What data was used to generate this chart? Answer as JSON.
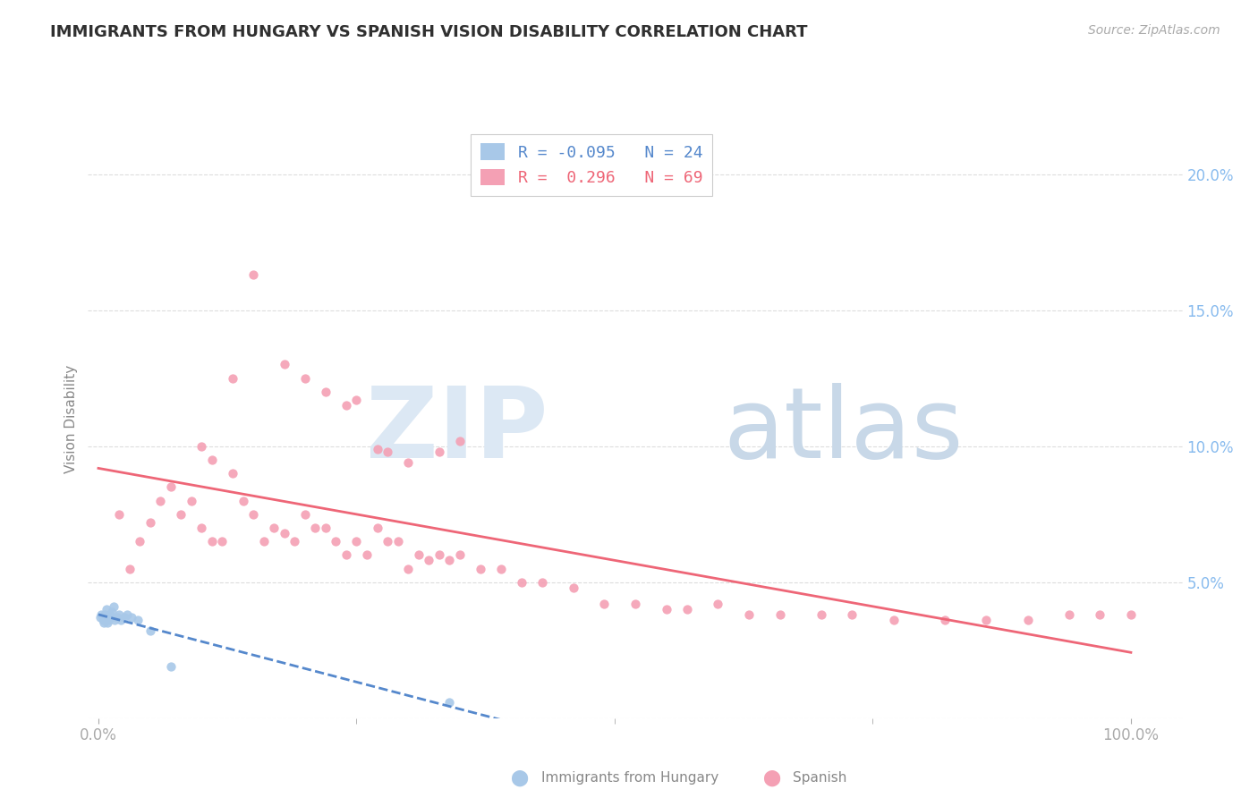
{
  "title": "IMMIGRANTS FROM HUNGARY VS SPANISH VISION DISABILITY CORRELATION CHART",
  "source": "Source: ZipAtlas.com",
  "ylabel": "Vision Disability",
  "legend_hungary": "Immigrants from Hungary",
  "legend_spanish": "Spanish",
  "R_hungary": -0.095,
  "N_hungary": 24,
  "R_spanish": 0.296,
  "N_spanish": 69,
  "hungary_color": "#a8c8e8",
  "spanish_color": "#f4a0b4",
  "hungary_line_color": "#5588cc",
  "spanish_line_color": "#ee6677",
  "background_color": "#ffffff",
  "grid_color": "#dddddd",
  "title_color": "#303030",
  "ytick_color": "#88bbee",
  "xtick_color": "#aaaaaa",
  "ylim": [
    0.0,
    0.22
  ],
  "xlim": [
    -0.01,
    1.05
  ],
  "yticks": [
    0.0,
    0.05,
    0.1,
    0.15,
    0.2
  ],
  "ytick_labels": [
    "",
    "5.0%",
    "10.0%",
    "15.0%",
    "20.0%"
  ],
  "hungary_scatter_x": [
    0.002,
    0.003,
    0.004,
    0.005,
    0.006,
    0.007,
    0.008,
    0.009,
    0.01,
    0.011,
    0.012,
    0.013,
    0.015,
    0.016,
    0.018,
    0.02,
    0.022,
    0.025,
    0.028,
    0.032,
    0.038,
    0.05,
    0.07,
    0.34
  ],
  "hungary_scatter_y": [
    0.037,
    0.038,
    0.036,
    0.035,
    0.038,
    0.037,
    0.04,
    0.035,
    0.036,
    0.038,
    0.037,
    0.039,
    0.041,
    0.036,
    0.037,
    0.038,
    0.036,
    0.037,
    0.038,
    0.037,
    0.036,
    0.032,
    0.019,
    0.006
  ],
  "spanish_scatter_x": [
    0.02,
    0.03,
    0.04,
    0.05,
    0.06,
    0.07,
    0.08,
    0.09,
    0.1,
    0.11,
    0.12,
    0.13,
    0.14,
    0.15,
    0.16,
    0.17,
    0.18,
    0.19,
    0.2,
    0.21,
    0.22,
    0.23,
    0.24,
    0.25,
    0.26,
    0.27,
    0.28,
    0.29,
    0.3,
    0.31,
    0.32,
    0.33,
    0.34,
    0.35,
    0.37,
    0.39,
    0.41,
    0.43,
    0.46,
    0.49,
    0.52,
    0.55,
    0.57,
    0.6,
    0.63,
    0.66,
    0.7,
    0.73,
    0.77,
    0.82,
    0.86,
    0.9,
    0.94,
    0.97,
    1.0,
    0.28,
    0.3,
    0.25,
    0.27,
    0.24,
    0.22,
    0.2,
    0.18,
    0.15,
    0.13,
    0.11,
    0.1,
    0.33,
    0.35
  ],
  "spanish_scatter_y": [
    0.075,
    0.055,
    0.065,
    0.072,
    0.08,
    0.085,
    0.075,
    0.08,
    0.07,
    0.065,
    0.065,
    0.09,
    0.08,
    0.075,
    0.065,
    0.07,
    0.068,
    0.065,
    0.075,
    0.07,
    0.07,
    0.065,
    0.06,
    0.065,
    0.06,
    0.07,
    0.065,
    0.065,
    0.055,
    0.06,
    0.058,
    0.06,
    0.058,
    0.06,
    0.055,
    0.055,
    0.05,
    0.05,
    0.048,
    0.042,
    0.042,
    0.04,
    0.04,
    0.042,
    0.038,
    0.038,
    0.038,
    0.038,
    0.036,
    0.036,
    0.036,
    0.036,
    0.038,
    0.038,
    0.038,
    0.098,
    0.094,
    0.117,
    0.099,
    0.115,
    0.12,
    0.125,
    0.13,
    0.163,
    0.125,
    0.095,
    0.1,
    0.098,
    0.102
  ]
}
